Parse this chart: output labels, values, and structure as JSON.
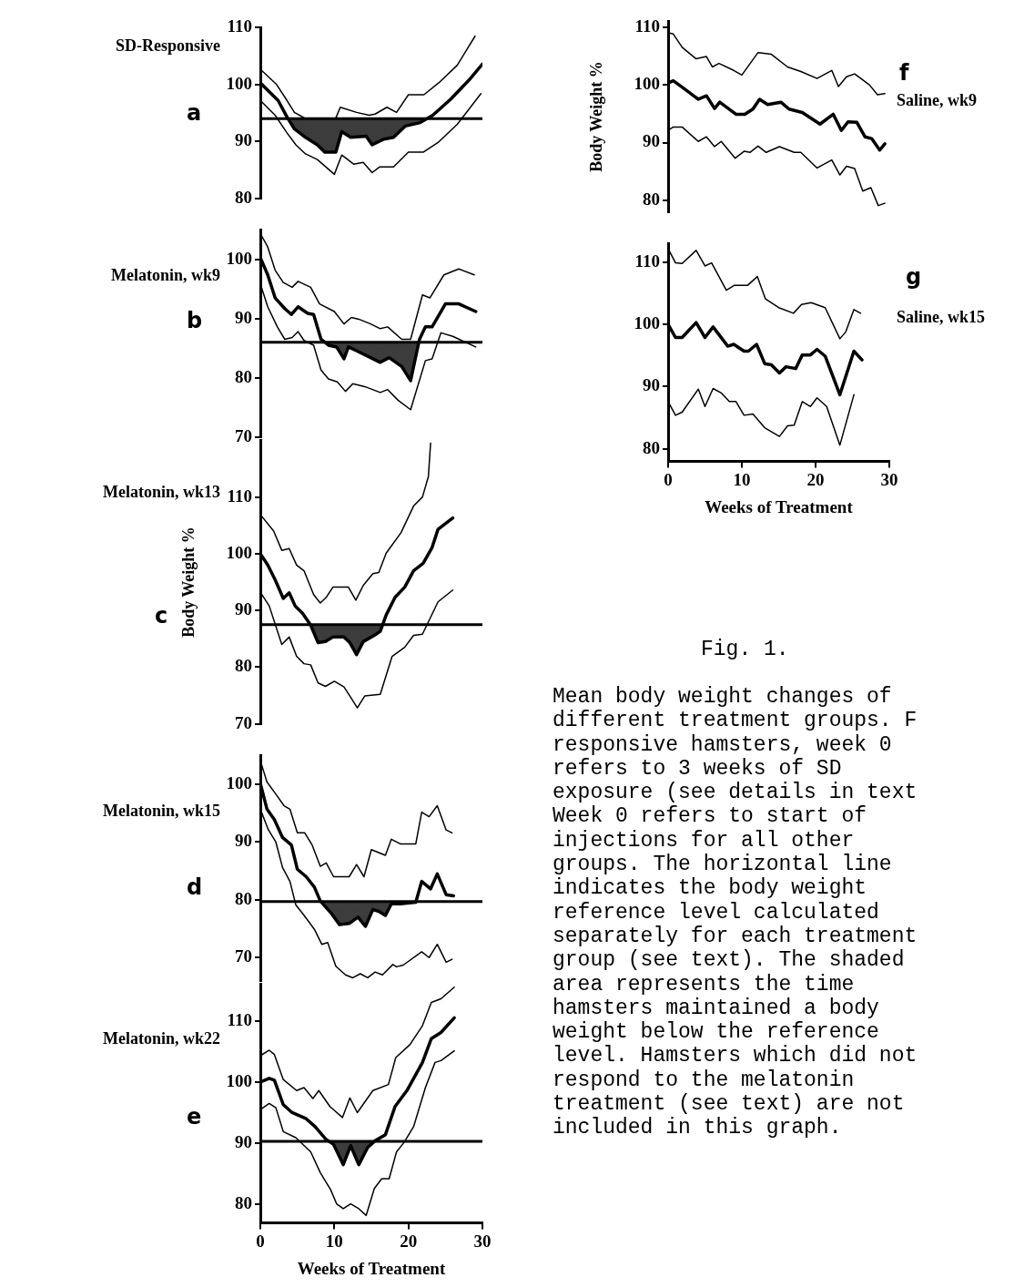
{
  "chart_data": [
    {
      "type": "line",
      "title": "SD-Responsive",
      "subtitle": "a",
      "xlim": [
        0,
        30
      ],
      "xticks": [
        0,
        10,
        20,
        30
      ],
      "ylim": [
        80,
        110
      ],
      "yticks": [
        80,
        90,
        100,
        110
      ],
      "tick_labels": "y",
      "grid": false,
      "legend": false,
      "marker": "none",
      "line_style": "solid",
      "ref_lines": [
        {
          "axis": "y",
          "value": 94
        }
      ],
      "series": [
        {
          "color": "#000000",
          "x": [
            0,
            2.2,
            3.6,
            4.6,
            6.1,
            10.2,
            10.8,
            13,
            14.7,
            15.5,
            17.1,
            18.4,
            20,
            22.1,
            24.1,
            26.6,
            29
          ],
          "values": [
            102.7,
            100,
            97.2,
            95.1,
            94,
            94.1,
            96,
            95.1,
            94.6,
            94.8,
            96,
            95.1,
            98.2,
            98.2,
            100.3,
            103.4,
            108.5
          ]
        },
        {
          "color": "#000000",
          "x": [
            0,
            2.4,
            3.6,
            4.6,
            6.1,
            7.7,
            8.7,
            10.2,
            11,
            12.2,
            14.3,
            15.1,
            16.7,
            18,
            19.6,
            21.6,
            23.3,
            25.7,
            28.2,
            30
          ],
          "values": [
            100.3,
            97.2,
            94.3,
            92.2,
            90.7,
            89.4,
            88.1,
            88.1,
            91.7,
            90.7,
            90.9,
            89.4,
            90.4,
            90.7,
            92.7,
            93.3,
            94.6,
            97.4,
            100.8,
            103.6
          ]
        },
        {
          "color": "#000000",
          "x": [
            0,
            2,
            3.6,
            4.8,
            6.1,
            7.7,
            10,
            11,
            12.6,
            13.9,
            15.1,
            16.1,
            18,
            20,
            22,
            24.1,
            26.6,
            29.8
          ],
          "values": [
            97.2,
            94.6,
            91.5,
            89.4,
            87.8,
            86.8,
            84.2,
            87.6,
            86,
            86.3,
            84.5,
            85.5,
            85.5,
            88.1,
            88.1,
            89.9,
            93,
            98.4
          ]
        }
      ]
    },
    {
      "type": "line",
      "title": "Melatonin, wk9",
      "subtitle": "b",
      "xlim": [
        0,
        30
      ],
      "xticks": [
        0,
        10,
        20,
        30
      ],
      "ylim": [
        70,
        105
      ],
      "yticks": [
        70,
        80,
        90,
        100
      ],
      "tick_labels": "y",
      "grid": false,
      "legend": false,
      "marker": "none",
      "line_style": "solid",
      "ref_lines": [
        {
          "axis": "y",
          "value": 86
        }
      ],
      "series": [
        {
          "color": "#000000",
          "x": [
            0,
            1,
            2,
            3.1,
            4.3,
            5.1,
            6.8,
            8,
            10,
            11.3,
            12.3,
            13.3,
            14.9,
            16.2,
            17.2,
            19.1,
            20.3,
            21.9,
            22.9,
            24.8,
            26.8,
            28.9
          ],
          "values": [
            104.4,
            102.1,
            98.2,
            96.1,
            95.3,
            96.3,
            95.3,
            92.5,
            91.2,
            89.1,
            90.2,
            89.9,
            89.1,
            88.3,
            88.6,
            86.5,
            86.5,
            94,
            93.5,
            97.4,
            98.4,
            97.4
          ]
        },
        {
          "color": "#000000",
          "x": [
            0,
            1,
            2,
            3.3,
            4.2,
            5.1,
            6.4,
            7.2,
            8.2,
            9.2,
            10.3,
            11.3,
            11.9,
            13.1,
            14.9,
            16.2,
            17.4,
            19.1,
            20.3,
            21.5,
            22.3,
            23.2,
            25,
            26.8,
            29.1
          ],
          "values": [
            100.3,
            97.4,
            93.5,
            91.7,
            90.7,
            92,
            90.9,
            90.7,
            86.5,
            85.5,
            85.2,
            83.2,
            85.2,
            84.5,
            83.4,
            82.6,
            83.4,
            81.9,
            79.5,
            86.5,
            88.6,
            88.6,
            92.5,
            92.5,
            91.2
          ]
        },
        {
          "color": "#000000",
          "x": [
            0,
            1,
            2.3,
            3.3,
            4.3,
            5.1,
            5.9,
            7.2,
            8.2,
            9.2,
            10.4,
            11.5,
            12.5,
            14.1,
            16.2,
            17.2,
            18.6,
            20.3,
            22.3,
            23.2,
            24.4,
            26,
            29.1
          ],
          "values": [
            95.9,
            92,
            88.6,
            86.5,
            86.8,
            87.8,
            86.3,
            85.5,
            81.3,
            79.8,
            79.3,
            77.7,
            79,
            78.5,
            77.5,
            78,
            76.2,
            74.6,
            82.9,
            83.2,
            87.6,
            87,
            85.2
          ]
        }
      ]
    },
    {
      "type": "line",
      "title": "Melatonin, wk13",
      "subtitle": "c",
      "ylabel": "Body Weight %",
      "xlim": [
        0,
        30
      ],
      "xticks": [
        0,
        10,
        20,
        30
      ],
      "ylim": [
        70,
        120
      ],
      "yticks": [
        70,
        80,
        90,
        100,
        110
      ],
      "tick_labels": "y",
      "grid": false,
      "legend": false,
      "marker": "none",
      "line_style": "solid",
      "ref_lines": [
        {
          "axis": "y",
          "value": 87.5
        }
      ],
      "series": [
        {
          "color": "#000000",
          "x": [
            0,
            1.8,
            2.9,
            3.9,
            4.9,
            5.9,
            7.2,
            8.1,
            8.9,
            9.8,
            11.9,
            12.9,
            13.9,
            15.2,
            16,
            17,
            19,
            20.7,
            21.9,
            22.7,
            23
          ],
          "values": [
            106.9,
            104,
            100.6,
            100.9,
            98,
            97,
            92.8,
            91.3,
            92.3,
            94.1,
            94.1,
            91.8,
            94.4,
            96.5,
            96.7,
            100.1,
            103.7,
            108.4,
            110,
            113.6,
            119.5
          ]
        },
        {
          "color": "#000000",
          "x": [
            0,
            1,
            2,
            3.1,
            3.9,
            4.7,
            5.7,
            6.8,
            7.8,
            8.8,
            9.8,
            11.3,
            12.1,
            13,
            13.9,
            15.4,
            16.2,
            17,
            18.2,
            19.5,
            20.7,
            22,
            23.2,
            24,
            26
          ],
          "values": [
            100,
            98,
            95.4,
            92.1,
            93.1,
            90.8,
            89.5,
            87.4,
            84.3,
            84.5,
            85.3,
            85.3,
            84.3,
            82.2,
            84.5,
            85.6,
            86.3,
            89.2,
            92.3,
            94.1,
            97,
            98.3,
            101.1,
            104.3,
            106.3
          ]
        },
        {
          "color": "#000000",
          "x": [
            0,
            1.2,
            2.9,
            3.9,
            4.9,
            5.9,
            6.8,
            7.8,
            8.8,
            10,
            11.3,
            12.1,
            13.1,
            14.1,
            16.2,
            17.8,
            19.5,
            20.7,
            21.9,
            24,
            26
          ],
          "values": [
            93.2,
            90.8,
            84,
            85.3,
            81.9,
            80.6,
            80.4,
            77.2,
            76.6,
            77.5,
            76.5,
            74.9,
            72.8,
            74.9,
            75.2,
            81.9,
            83.5,
            85.6,
            85.8,
            91.5,
            93.6
          ]
        }
      ]
    },
    {
      "type": "line",
      "title": "Melatonin, wk15",
      "subtitle": "d",
      "xlim": [
        0,
        30
      ],
      "xticks": [
        0,
        10,
        20,
        30
      ],
      "ylim": [
        66,
        105
      ],
      "yticks": [
        70,
        80,
        90,
        100
      ],
      "tick_labels": "y",
      "grid": false,
      "legend": false,
      "marker": "none",
      "line_style": "solid",
      "ref_lines": [
        {
          "axis": "y",
          "value": 79.7
        }
      ],
      "series": [
        {
          "color": "#000000",
          "x": [
            0,
            0.9,
            2.1,
            3.2,
            4,
            5,
            6,
            7,
            8.1,
            8.9,
            9.9,
            11.1,
            12,
            13,
            14,
            15,
            16.9,
            17.7,
            18.9,
            21,
            21.8,
            22.8,
            23.9,
            25.1,
            25.9
          ],
          "values": [
            104.1,
            100.4,
            98.3,
            96.3,
            95.7,
            91.6,
            91.6,
            89.5,
            85.8,
            86.4,
            84,
            84,
            84,
            86.1,
            84,
            88.7,
            87.7,
            90.5,
            89.7,
            89.7,
            95.2,
            94.4,
            96.3,
            92.1,
            91.6
          ]
        },
        {
          "color": "#000000",
          "x": [
            0,
            0.9,
            1.9,
            3,
            4.2,
            5,
            6.2,
            7.3,
            8.1,
            9.5,
            10.7,
            12,
            13.2,
            14.2,
            15.2,
            16,
            16.9,
            17.7,
            18.9,
            21,
            21.8,
            23,
            23.9,
            25.1,
            26.1
          ],
          "values": [
            100.2,
            95.7,
            93.9,
            90.8,
            89.5,
            85.3,
            84,
            82.2,
            79.8,
            77.8,
            75.7,
            75.9,
            77,
            75.4,
            78.3,
            78,
            77.3,
            79.3,
            79.3,
            79.6,
            83.2,
            81.9,
            84.5,
            80.9,
            80.7
          ]
        },
        {
          "color": "#000000",
          "x": [
            0,
            1.1,
            2.1,
            3,
            4,
            4.8,
            5.8,
            7.3,
            8.3,
            9.1,
            10.2,
            11.5,
            12.5,
            13.5,
            14.5,
            15.5,
            16.5,
            17.9,
            18.4,
            19.3,
            21.8,
            22.8,
            23.9,
            25.1,
            25.9
          ],
          "values": [
            95.7,
            92.1,
            90,
            85.6,
            83.2,
            79.1,
            77.5,
            74.9,
            72.3,
            72.6,
            68.5,
            67,
            66.5,
            67.2,
            66.5,
            67.5,
            67,
            68.8,
            68.4,
            68.7,
            71,
            70,
            72.3,
            69.2,
            69.7
          ]
        }
      ]
    },
    {
      "type": "line",
      "title": "Melatonin, wk22",
      "subtitle": "e",
      "xlabel": "Weeks of Treatment",
      "xlim": [
        0,
        30
      ],
      "xticks": [
        0,
        10,
        20,
        30
      ],
      "ylim": [
        77,
        116
      ],
      "yticks": [
        80,
        90,
        100,
        110
      ],
      "grid": false,
      "legend": false,
      "marker": "none",
      "line_style": "solid",
      "ref_lines": [
        {
          "axis": "y",
          "value": 90.3
        }
      ],
      "series": [
        {
          "color": "#000000",
          "x": [
            0,
            1.2,
            1.9,
            3.1,
            4.9,
            5.9,
            7.1,
            7.9,
            9.4,
            11.1,
            12.1,
            13.1,
            15.2,
            17.3,
            18.3,
            20.2,
            21.9,
            23.1,
            24.4,
            26.2
          ],
          "values": [
            104.3,
            105.2,
            104.5,
            100.4,
            98.6,
            99.1,
            97.3,
            98.6,
            96,
            94.2,
            97.4,
            95,
            98.6,
            99.6,
            104,
            106.1,
            109.2,
            113,
            113.6,
            115.5
          ]
        },
        {
          "color": "#000000",
          "x": [
            0,
            1.2,
            1.9,
            3.1,
            4.3,
            6.2,
            7.4,
            8.9,
            9.9,
            11.2,
            12.2,
            13.3,
            14.5,
            15.5,
            16.9,
            18.2,
            19.8,
            21.9,
            23.1,
            24.4,
            26.2
          ],
          "values": [
            100,
            100.6,
            100.3,
            96.3,
            95,
            94,
            92.7,
            90.6,
            89.8,
            86.5,
            89.6,
            86.5,
            89.3,
            90.4,
            91.4,
            96,
            98.6,
            103.2,
            107.1,
            108.1,
            110.5
          ]
        },
        {
          "color": "#000000",
          "x": [
            0,
            1.2,
            2.1,
            3.1,
            4.8,
            6.8,
            8.1,
            9.5,
            10.3,
            11.2,
            12.2,
            13.3,
            14.3,
            15.4,
            16.4,
            17.4,
            18.4,
            19.4,
            20.7,
            22.3,
            23.6,
            24.4,
            26.2
          ],
          "values": [
            95.5,
            96.5,
            95.8,
            91.9,
            90.9,
            88.6,
            85.2,
            82.4,
            80.1,
            79.3,
            80.1,
            79.3,
            78.2,
            82.6,
            84.2,
            84.2,
            88.6,
            90.1,
            92.7,
            99.1,
            103.2,
            103.5,
            105.1
          ]
        }
      ]
    },
    {
      "type": "line",
      "title": "Saline, wk9",
      "subtitle": "f",
      "ylabel": "Body Weight %",
      "xlim": [
        0,
        30
      ],
      "xticks": [
        0,
        10,
        20,
        30
      ],
      "ylim": [
        78,
        111
      ],
      "yticks": [
        80,
        90,
        100,
        110
      ],
      "tick_labels": "y",
      "grid": false,
      "legend": false,
      "marker": "none",
      "line_style": "solid",
      "series": [
        {
          "color": "#000000",
          "x": [
            0,
            0.7,
            1.9,
            3.8,
            5.2,
            6,
            6.9,
            8.9,
            10,
            12.2,
            14,
            16.2,
            18,
            20.2,
            22.2,
            23.1,
            24.2,
            25.3,
            27.3,
            28.4,
            29.4
          ],
          "values": [
            109,
            108.8,
            106.5,
            104.5,
            104.9,
            103.1,
            103.7,
            102.5,
            101.7,
            105.6,
            105.3,
            103.1,
            102.3,
            101.1,
            102.5,
            99.7,
            101.4,
            101.9,
            100,
            98.3,
            98.5
          ]
        },
        {
          "color": "#000000",
          "x": [
            0,
            0.7,
            2.1,
            4.1,
            5.2,
            6.3,
            7,
            9.2,
            10.4,
            11.5,
            12.4,
            13.5,
            15.3,
            16.4,
            18.2,
            20.6,
            22.4,
            23.5,
            24.4,
            25.6,
            26.7,
            27.6,
            28.7,
            29.4
          ],
          "values": [
            100.3,
            100.7,
            99.4,
            97.5,
            98.1,
            95.9,
            97,
            94.9,
            94.9,
            95.8,
            97.5,
            96.6,
            97,
            95.8,
            95.2,
            93.2,
            94.9,
            92.1,
            93.6,
            93.5,
            91,
            90.7,
            88.7,
            89.8
          ]
        },
        {
          "color": "#000000",
          "x": [
            0,
            0.7,
            1.9,
            4.1,
            5.2,
            6.3,
            7.2,
            9.1,
            10.3,
            11.1,
            12.2,
            13.3,
            15.1,
            17.1,
            18,
            20.2,
            22.2,
            23.3,
            24.2,
            25.3,
            26.4,
            27.5,
            28.5,
            29.4
          ],
          "values": [
            92.1,
            92.7,
            92.7,
            90.2,
            91,
            89.3,
            90.2,
            87.3,
            88.5,
            88.3,
            89.4,
            88.3,
            89.3,
            88.3,
            88.3,
            85.6,
            87,
            84.4,
            85.9,
            85.5,
            81.6,
            82.2,
            79.1,
            79.5
          ]
        }
      ]
    },
    {
      "type": "line",
      "title": "Saline, wk15",
      "subtitle": "g",
      "xlabel": "Weeks of Treatment",
      "xlim": [
        0,
        30
      ],
      "xticks": [
        0,
        10,
        20,
        30
      ],
      "ylim": [
        78,
        113
      ],
      "yticks": [
        80,
        90,
        100,
        110
      ],
      "grid": false,
      "legend": false,
      "marker": "none",
      "line_style": "solid",
      "annotations": [
        "Fig. 1.",
        "Mean body weight changes of\ndifferent treatment groups. F\nresponsive hamsters, week 0\nrefers to 3 weeks of SD\nexposure (see details in text\nWeek 0 refers to start of\ninjections for all other\ngroups. The horizontal line\nindicates the body weight\nreference level calculated\nseparately for each treatment\ngroup (see text). The shaded\narea represents the time\nhamsters maintained a body\nweight below the reference\nlevel. Hamsters which did not\nrespond to the melatonin\ntreatment (see text) are not\nincluded in this graph."
      ],
      "series": [
        {
          "color": "#000000",
          "x": [
            0,
            1,
            1.9,
            3.8,
            5,
            5.9,
            7.9,
            9,
            10.8,
            12.1,
            13.2,
            15,
            17,
            18.1,
            19.4,
            21.3,
            23.3,
            24.1,
            25.2,
            26.1
          ],
          "values": [
            112.2,
            109.9,
            109.8,
            111.9,
            109.4,
            109.9,
            105.5,
            106.3,
            106.3,
            107.7,
            104.1,
            102.7,
            101.8,
            103.2,
            103.5,
            102.7,
            97.7,
            98.8,
            102.4,
            101.8
          ]
        },
        {
          "color": "#000000",
          "x": [
            0,
            1,
            1.9,
            3.8,
            5,
            6.1,
            8.1,
            8.9,
            10.3,
            10.9,
            12,
            13.1,
            14,
            15.1,
            16,
            17.3,
            18.2,
            19.3,
            20.2,
            21.3,
            23.3,
            25.2,
            26.3
          ],
          "values": [
            100,
            97.9,
            97.9,
            100.3,
            97.9,
            99.6,
            96.5,
            96.8,
            95.7,
            95.7,
            96.8,
            93.7,
            93.5,
            92.2,
            93.2,
            92.9,
            95.1,
            95.1,
            96,
            94.9,
            88.7,
            95.7,
            94.3
          ]
        },
        {
          "color": "#000000",
          "x": [
            0,
            1,
            1.9,
            4.1,
            5,
            6.1,
            7.2,
            8.3,
            9.2,
            10.3,
            11.5,
            13.1,
            15.1,
            16.2,
            17.1,
            18.2,
            19.3,
            20.2,
            21.5,
            23.3,
            25.2
          ],
          "values": [
            87.6,
            85.4,
            85.9,
            89.6,
            86.8,
            89.7,
            89,
            87.6,
            87.6,
            85.4,
            85.6,
            83.4,
            82,
            83.7,
            83.8,
            87.6,
            86.8,
            88.2,
            86.8,
            80.6,
            88.7
          ]
        }
      ]
    }
  ]
}
